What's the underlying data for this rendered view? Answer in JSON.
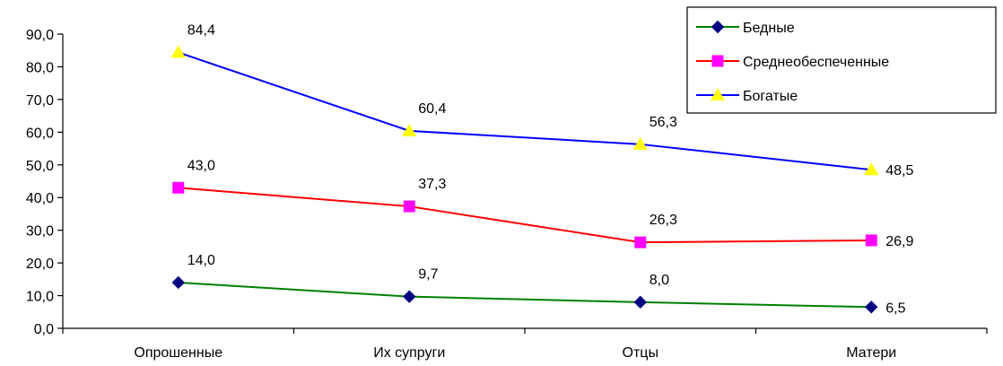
{
  "chart_data": {
    "type": "line",
    "categories": [
      "Опрошенные",
      "Их супруги",
      "Отцы",
      "Матери"
    ],
    "series": [
      {
        "name": "Бедные",
        "values": [
          14.0,
          9.7,
          8.0,
          6.5
        ],
        "labels": [
          "14,0",
          "9,7",
          "8,0",
          "6,5"
        ],
        "color": "#008000",
        "marker": "diamond",
        "marker_color": "#000080"
      },
      {
        "name": "Среднеобеспеченные",
        "values": [
          43.0,
          37.3,
          26.3,
          26.9
        ],
        "labels": [
          "43,0",
          "37,3",
          "26,3",
          "26,9"
        ],
        "color": "#ff0000",
        "marker": "square",
        "marker_color": "#ff00ff"
      },
      {
        "name": "Богатые",
        "values": [
          84.4,
          60.4,
          56.3,
          48.5
        ],
        "labels": [
          "84,4",
          "60,4",
          "56,3",
          "48,5"
        ],
        "color": "#0000ff",
        "marker": "triangle",
        "marker_color": "#ffff00"
      }
    ],
    "ylim": [
      0,
      90
    ],
    "yticks": [
      0,
      10,
      20,
      30,
      40,
      50,
      60,
      70,
      80,
      90
    ],
    "ytick_labels": [
      "0,0",
      "10,0",
      "20,0",
      "30,0",
      "40,0",
      "50,0",
      "60,0",
      "70,0",
      "80,0",
      "90,0"
    ],
    "grid": false,
    "legend_position": "top-right"
  }
}
